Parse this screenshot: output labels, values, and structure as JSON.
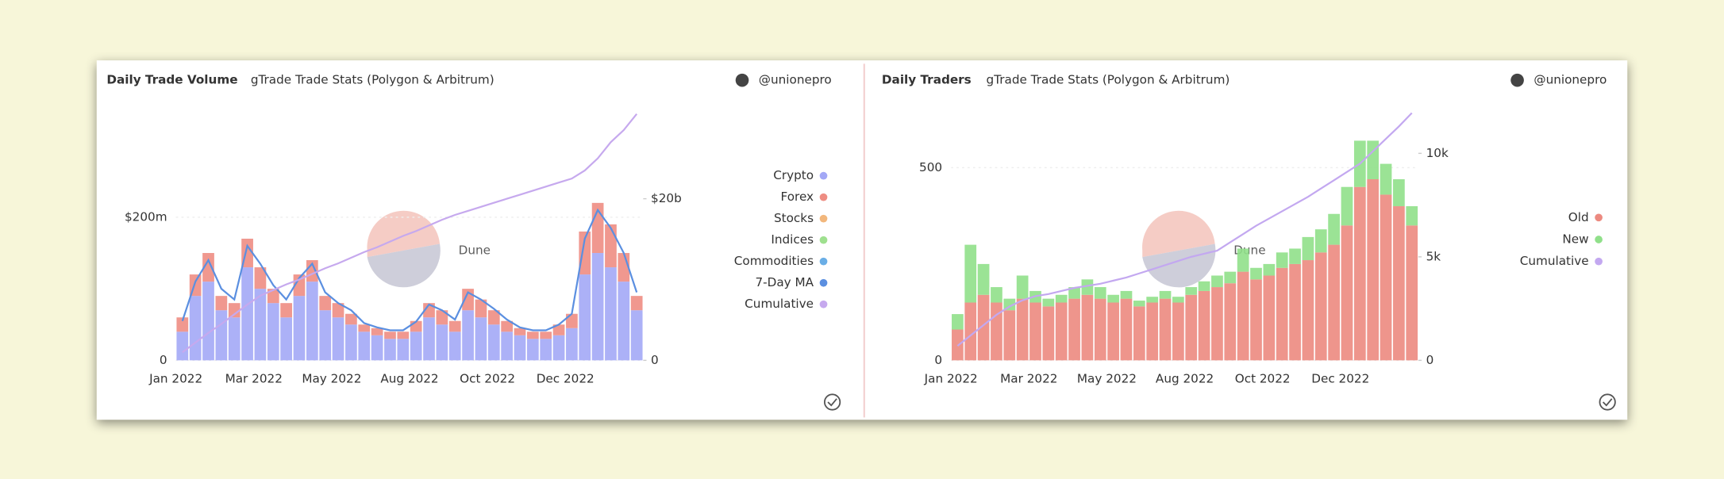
{
  "chart_data": [
    {
      "type": "bar",
      "stacked": true,
      "title": "Daily Trade Volume",
      "subtitle": "gTrade Trade Stats (Polygon & Arbitrum)",
      "author": "@unionepro",
      "watermark": "Dune",
      "categories": [
        "Jan 2022",
        null,
        null,
        null,
        null,
        null,
        "Mar 2022",
        null,
        null,
        null,
        null,
        null,
        "May 2022",
        null,
        null,
        null,
        null,
        null,
        "Aug 2022",
        null,
        null,
        null,
        null,
        null,
        "Oct 2022",
        null,
        null,
        null,
        null,
        null,
        "Dec 2022",
        null,
        null,
        null,
        null,
        null
      ],
      "ylim": [
        0,
        350000000
      ],
      "yticks": [
        0,
        {
          "value": 200000000,
          "label": "$200m"
        }
      ],
      "y2lim": [
        0,
        31000000000
      ],
      "y2ticks": [
        0,
        {
          "value": 20000000000,
          "label": "$20b"
        }
      ],
      "series": [
        {
          "name": "Crypto",
          "color": "#a3a8f6",
          "values": [
            40000000,
            90000000,
            110000000,
            70000000,
            60000000,
            130000000,
            100000000,
            80000000,
            60000000,
            90000000,
            110000000,
            70000000,
            60000000,
            50000000,
            40000000,
            35000000,
            30000000,
            30000000,
            40000000,
            60000000,
            50000000,
            40000000,
            70000000,
            60000000,
            50000000,
            40000000,
            35000000,
            30000000,
            30000000,
            35000000,
            45000000,
            120000000,
            150000000,
            130000000,
            110000000,
            70000000
          ]
        },
        {
          "name": "Forex",
          "color": "#ee8d83",
          "values": [
            20000000,
            30000000,
            40000000,
            20000000,
            20000000,
            40000000,
            30000000,
            20000000,
            20000000,
            30000000,
            30000000,
            20000000,
            20000000,
            15000000,
            10000000,
            10000000,
            10000000,
            10000000,
            15000000,
            20000000,
            20000000,
            15000000,
            30000000,
            25000000,
            20000000,
            15000000,
            10000000,
            10000000,
            10000000,
            15000000,
            20000000,
            60000000,
            70000000,
            60000000,
            40000000,
            20000000
          ]
        },
        {
          "name": "Stocks",
          "color": "#f2b77c",
          "values": [
            0,
            0,
            0,
            0,
            0,
            0,
            0,
            0,
            0,
            0,
            0,
            0,
            0,
            0,
            0,
            0,
            0,
            0,
            0,
            0,
            0,
            0,
            0,
            0,
            0,
            0,
            0,
            0,
            0,
            0,
            0,
            0,
            0,
            0,
            0,
            0
          ]
        },
        {
          "name": "Indices",
          "color": "#9fe08f",
          "values": [
            0,
            0,
            0,
            0,
            0,
            0,
            0,
            0,
            0,
            0,
            0,
            0,
            0,
            0,
            0,
            0,
            0,
            0,
            0,
            0,
            0,
            0,
            0,
            0,
            0,
            0,
            0,
            0,
            0,
            0,
            0,
            0,
            0,
            0,
            0,
            0
          ]
        },
        {
          "name": "Commodities",
          "color": "#6aaee6",
          "values": [
            0,
            0,
            0,
            0,
            0,
            0,
            0,
            0,
            0,
            0,
            0,
            0,
            0,
            0,
            0,
            0,
            0,
            0,
            0,
            0,
            0,
            0,
            0,
            0,
            0,
            0,
            0,
            0,
            0,
            0,
            0,
            0,
            0,
            0,
            0,
            0
          ]
        },
        {
          "name": "7-Day MA",
          "color": "#5b8fe0",
          "type": "line",
          "values": [
            55000000,
            110000000,
            140000000,
            100000000,
            85000000,
            160000000,
            135000000,
            105000000,
            85000000,
            115000000,
            135000000,
            95000000,
            80000000,
            70000000,
            52000000,
            46000000,
            42000000,
            42000000,
            54000000,
            78000000,
            70000000,
            57000000,
            95000000,
            85000000,
            72000000,
            57000000,
            46000000,
            42000000,
            42000000,
            50000000,
            65000000,
            170000000,
            210000000,
            185000000,
            150000000,
            95000000
          ]
        },
        {
          "name": "Cumulative",
          "color": "#c6a9ee",
          "type": "line",
          "axis": "y2",
          "values": [
            1000000000,
            2200000000,
            3400000000,
            4500000000,
            5700000000,
            6900000000,
            8000000000,
            8700000000,
            9400000000,
            10000000000,
            10700000000,
            11400000000,
            12000000000,
            12700000000,
            13400000000,
            14000000000,
            14700000000,
            15400000000,
            16000000000,
            16700000000,
            17400000000,
            18000000000,
            18500000000,
            19000000000,
            19500000000,
            20000000000,
            20500000000,
            21000000000,
            21500000000,
            22000000000,
            22500000000,
            23500000000,
            25000000000,
            27000000000,
            28500000000,
            30500000000
          ]
        }
      ]
    },
    {
      "type": "bar",
      "stacked": true,
      "title": "Daily Traders",
      "subtitle": "gTrade Trade Stats (Polygon & Arbitrum)",
      "author": "@unionepro",
      "watermark": "Dune",
      "categories": [
        "Jan 2022",
        null,
        null,
        null,
        null,
        null,
        "Mar 2022",
        null,
        null,
        null,
        null,
        null,
        "May 2022",
        null,
        null,
        null,
        null,
        null,
        "Aug 2022",
        null,
        null,
        null,
        null,
        null,
        "Oct 2022",
        null,
        null,
        null,
        null,
        null,
        "Dec 2022",
        null,
        null,
        null,
        null,
        null
      ],
      "ylim": [
        0,
        650
      ],
      "yticks": [
        0,
        500
      ],
      "y2lim": [
        0,
        12100
      ],
      "y2ticks": [
        0,
        {
          "value": 5000,
          "label": "5k"
        },
        {
          "value": 10000,
          "label": "10k"
        }
      ],
      "series": [
        {
          "name": "Old",
          "color": "#ec8a80",
          "values": [
            80,
            150,
            170,
            150,
            130,
            160,
            150,
            140,
            150,
            160,
            170,
            160,
            150,
            160,
            140,
            150,
            160,
            150,
            170,
            180,
            190,
            200,
            230,
            210,
            220,
            240,
            250,
            260,
            280,
            300,
            350,
            450,
            470,
            430,
            400,
            350
          ]
        },
        {
          "name": "New",
          "color": "#90e08a",
          "values": [
            40,
            150,
            80,
            40,
            30,
            60,
            30,
            20,
            20,
            30,
            40,
            30,
            20,
            20,
            15,
            15,
            20,
            15,
            20,
            25,
            30,
            30,
            60,
            30,
            30,
            40,
            40,
            60,
            60,
            80,
            100,
            120,
            100,
            80,
            70,
            50
          ]
        },
        {
          "name": "Cumulative",
          "color": "#c3a8f0",
          "type": "line",
          "axis": "y2",
          "values": [
            700,
            1200,
            1700,
            2200,
            2600,
            2900,
            3100,
            3200,
            3350,
            3500,
            3600,
            3700,
            3850,
            4000,
            4200,
            4400,
            4600,
            4800,
            5000,
            5150,
            5300,
            5700,
            6100,
            6500,
            6850,
            7200,
            7550,
            7900,
            8300,
            8700,
            9100,
            9500,
            10100,
            10700,
            11300,
            11950
          ]
        }
      ]
    }
  ]
}
